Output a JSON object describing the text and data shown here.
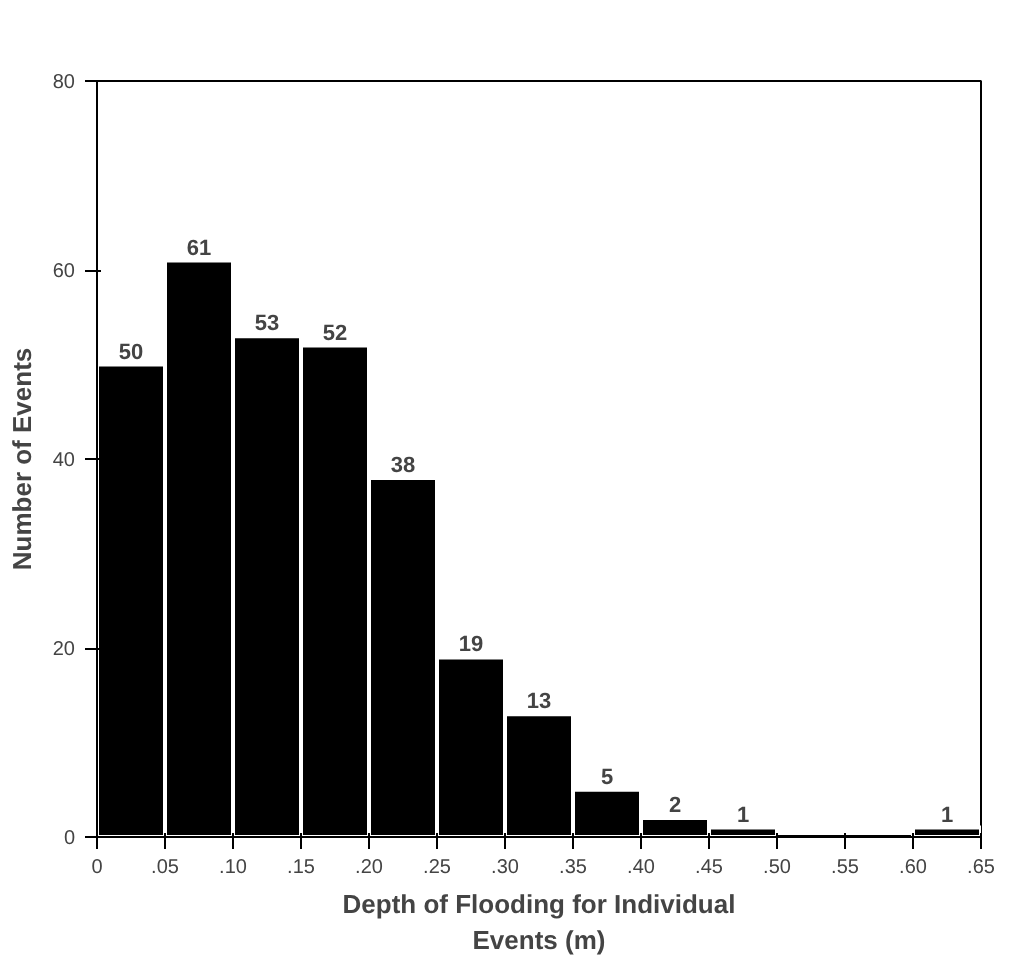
{
  "chart_data": {
    "type": "histogram",
    "xlabel": "Depth of Flooding for Individual Events (m)",
    "ylabel": "Number of Events",
    "bins": [
      0,
      0.05,
      0.1,
      0.15,
      0.2,
      0.25,
      0.3,
      0.35,
      0.4,
      0.45,
      0.5,
      0.55,
      0.6,
      0.65
    ],
    "values": [
      50,
      61,
      53,
      52,
      38,
      19,
      13,
      5,
      2,
      1,
      0,
      0,
      1
    ],
    "value_labels": [
      "50",
      "61",
      "53",
      "52",
      "38",
      "19",
      "13",
      "5",
      "2",
      "1",
      null,
      null,
      "1"
    ],
    "color": "#000000",
    "xlim": [
      0,
      0.65
    ],
    "ylim": [
      0,
      80
    ],
    "xticks": [
      0,
      {
        "value": 0.05,
        "label": ".05"
      },
      {
        "value": 0.1,
        "label": ".10"
      },
      {
        "value": 0.15,
        "label": ".15"
      },
      {
        "value": 0.2,
        "label": ".20"
      },
      {
        "value": 0.25,
        "label": ".25"
      },
      {
        "value": 0.3,
        "label": ".30"
      },
      {
        "value": 0.35,
        "label": ".35"
      },
      {
        "value": 0.4,
        "label": ".40"
      },
      {
        "value": 0.45,
        "label": ".45"
      },
      {
        "value": 0.5,
        "label": ".50"
      },
      {
        "value": 0.55,
        "label": ".55"
      },
      {
        "value": 0.6,
        "label": ".60"
      },
      {
        "value": 0.65,
        "label": ".65"
      }
    ],
    "yticks": [
      0,
      20,
      40,
      60,
      80
    ],
    "grid": false
  }
}
